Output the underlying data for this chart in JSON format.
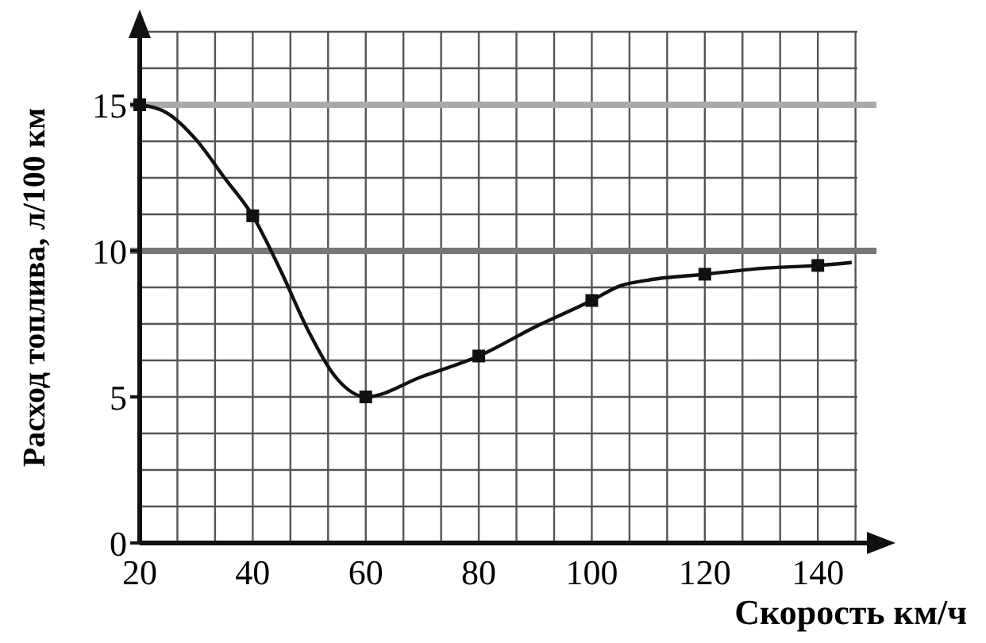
{
  "chart_data": {
    "type": "line",
    "xlabel": "Скорость км/ч",
    "ylabel": "Расход топлива, л/100 км",
    "xlim": [
      20,
      147
    ],
    "ylim": [
      0,
      17.5
    ],
    "xticks": [
      20,
      40,
      60,
      80,
      100,
      120,
      140
    ],
    "yticks": [
      0,
      5,
      10,
      15
    ],
    "grid": true,
    "ref_lines": [
      {
        "axis": "y",
        "value": 15,
        "color": "#aaaaaa"
      },
      {
        "axis": "y",
        "value": 10,
        "color": "#777777"
      }
    ],
    "series": [
      {
        "color": "#111111",
        "marker": "none",
        "x": [
          20,
          25,
          30,
          35,
          40,
          45,
          50,
          55,
          60,
          70,
          80,
          90,
          100,
          105,
          110,
          120,
          130,
          140,
          146
        ],
        "values": [
          15,
          14.7,
          13.8,
          12.5,
          11.2,
          9.3,
          7.2,
          5.6,
          5.0,
          5.7,
          6.4,
          7.4,
          8.3,
          8.8,
          9.0,
          9.2,
          9.4,
          9.5,
          9.6
        ]
      },
      {
        "type": "scatter",
        "color": "#111111",
        "marker": "square",
        "x": [
          20,
          40,
          60,
          80,
          100,
          120,
          140
        ],
        "values": [
          15,
          11.2,
          5.0,
          6.4,
          8.3,
          9.2,
          9.5
        ]
      }
    ]
  }
}
